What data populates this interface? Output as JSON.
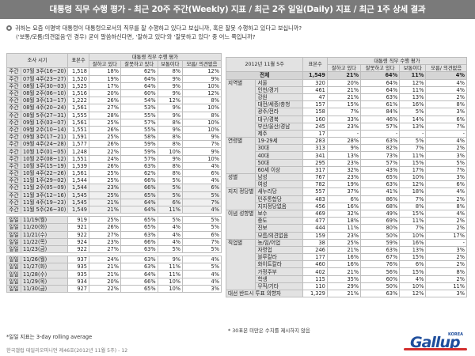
{
  "banner": "대통령 직무 수행 평가 - 최근 20주 주간(Weekly) 지표 / 최근 2주 일일(Daily) 지표 / 최근 1주 상세 결과",
  "question": {
    "line1": "귀하는 요즘 이명박 대통령이 대통령으로서의 직무를 잘 수행하고 있다고 보십니까, 혹은 잘못 수행하고 있다고 보십니까?",
    "line2": "('보통/모름/의견없음'인 경우) 굳이 말씀하신다면, '잘하고 있다'와 '잘못하고 있다' 중 어느 쪽입니까?"
  },
  "left_table": {
    "header_period": "조사 시기",
    "header_base": "표본수",
    "header_group": "대통령 직무 수행 평가",
    "cols": [
      "잘하고 있다",
      "잘못하고 있다",
      "보통이다",
      "모름/ 의견없음"
    ],
    "weekly": [
      [
        "주간",
        "07월 3주(16~20)",
        "1,518",
        "18%",
        "62%",
        "8%",
        "12%"
      ],
      [
        "주간",
        "07월 4주(23~27)",
        "1,520",
        "19%",
        "64%",
        "9%",
        "9%"
      ],
      [
        "주간",
        "08월 1주(30~03)",
        "1,525",
        "17%",
        "64%",
        "9%",
        "10%"
      ],
      [
        "주간",
        "08월 2주(06~10)",
        "1,516",
        "20%",
        "60%",
        "9%",
        "12%"
      ],
      [
        "주간",
        "08월 3주(13~17)",
        "1,222",
        "26%",
        "54%",
        "12%",
        "8%"
      ],
      [
        "주간",
        "08월 4주(20~24)",
        "1,561",
        "27%",
        "53%",
        "9%",
        "10%"
      ],
      [
        "주간",
        "08월 5주(27~31)",
        "1,555",
        "28%",
        "55%",
        "9%",
        "8%"
      ],
      [
        "주간",
        "09월 1주(03~07)",
        "1,561",
        "25%",
        "57%",
        "8%",
        "10%"
      ],
      [
        "주간",
        "09월 2주(10~14)",
        "1,551",
        "26%",
        "55%",
        "9%",
        "10%"
      ],
      [
        "주간",
        "09월 3주(17~21)",
        "1,591",
        "25%",
        "58%",
        "8%",
        "9%"
      ],
      [
        "주간",
        "09월 4주(24~28)",
        "1,577",
        "26%",
        "59%",
        "8%",
        "7%"
      ],
      [
        "주간",
        "10월 1주(01~05)",
        "1,248",
        "22%",
        "59%",
        "10%",
        "9%"
      ],
      [
        "주간",
        "10월 2주(08~12)",
        "1,551",
        "24%",
        "57%",
        "9%",
        "10%"
      ],
      [
        "주간",
        "10월 3주(15~19)",
        "1,539",
        "26%",
        "63%",
        "8%",
        "4%"
      ],
      [
        "주간",
        "10월 4주(22~26)",
        "1,561",
        "25%",
        "62%",
        "8%",
        "6%"
      ],
      [
        "주간",
        "11월 1주(29~02)",
        "1,544",
        "25%",
        "66%",
        "5%",
        "4%"
      ],
      [
        "주간",
        "11월 2주(05~09)",
        "1,544",
        "23%",
        "66%",
        "5%",
        "6%"
      ],
      [
        "주간",
        "11월 3주(12~16)",
        "1,545",
        "25%",
        "65%",
        "5%",
        "5%"
      ],
      [
        "주간",
        "11월 4주(19~23)",
        "1,545",
        "21%",
        "64%",
        "6%",
        "7%"
      ],
      [
        "주간",
        "11월 5주(26~30)",
        "1,549",
        "21%",
        "64%",
        "11%",
        "4%"
      ]
    ],
    "daily_1": [
      [
        "일일",
        "11/19(월)",
        "919",
        "25%",
        "65%",
        "5%",
        "5%"
      ],
      [
        "일일",
        "11/20(화)",
        "921",
        "26%",
        "65%",
        "4%",
        "5%"
      ],
      [
        "일일",
        "11/21(수)",
        "922",
        "27%",
        "63%",
        "4%",
        "6%"
      ],
      [
        "일일",
        "11/22(목)",
        "924",
        "23%",
        "66%",
        "4%",
        "7%"
      ],
      [
        "일일",
        "11/23(금)",
        "922",
        "27%",
        "63%",
        "5%",
        "5%"
      ]
    ],
    "daily_2": [
      [
        "일일",
        "11/26(월)",
        "937",
        "24%",
        "63%",
        "9%",
        "4%"
      ],
      [
        "일일",
        "11/27(화)",
        "935",
        "21%",
        "63%",
        "11%",
        "5%"
      ],
      [
        "일일",
        "11/28(수)",
        "935",
        "21%",
        "64%",
        "11%",
        "4%"
      ],
      [
        "일일",
        "11/29(목)",
        "934",
        "20%",
        "66%",
        "10%",
        "4%"
      ],
      [
        "일일",
        "11/30(금)",
        "927",
        "22%",
        "65%",
        "10%",
        "3%"
      ]
    ]
  },
  "right_table": {
    "header_title": "2012년 11월 5주",
    "header_base": "표본수",
    "header_group": "대통령 직무 수행 평가",
    "cols": [
      "잘하고 있다",
      "잘못하고 있다",
      "보통이다",
      "모름/ 의견없음"
    ],
    "total": [
      "전체",
      "1,549",
      "21%",
      "64%",
      "11%",
      "4%"
    ],
    "groups": [
      {
        "name": "지역별",
        "rows": [
          [
            "서울",
            "320",
            "20%",
            "64%",
            "12%",
            "4%"
          ],
          [
            "인천/경기",
            "461",
            "21%",
            "64%",
            "11%",
            "4%"
          ],
          [
            "강원",
            "47",
            "21%",
            "63%",
            "13%",
            "2%"
          ],
          [
            "대전/세종/충청",
            "157",
            "15%",
            "61%",
            "16%",
            "8%"
          ],
          [
            "광주/전라",
            "158",
            "7%",
            "84%",
            "5%",
            "3%"
          ],
          [
            "대구/경북",
            "160",
            "33%",
            "46%",
            "14%",
            "6%"
          ],
          [
            "부산/울산/경남",
            "245",
            "23%",
            "57%",
            "13%",
            "7%"
          ],
          [
            "제주",
            "17",
            "-",
            "-",
            "-",
            "-"
          ]
        ]
      },
      {
        "name": "연령별",
        "rows": [
          [
            "19-29세",
            "283",
            "28%",
            "63%",
            "5%",
            "4%"
          ],
          [
            "30대",
            "313",
            "9%",
            "82%",
            "7%",
            "2%"
          ],
          [
            "40대",
            "341",
            "13%",
            "73%",
            "11%",
            "3%"
          ],
          [
            "50대",
            "295",
            "23%",
            "57%",
            "15%",
            "5%"
          ],
          [
            "60세 이상",
            "317",
            "32%",
            "43%",
            "17%",
            "7%"
          ]
        ]
      },
      {
        "name": "성별",
        "rows": [
          [
            "남성",
            "767",
            "23%",
            "65%",
            "10%",
            "3%"
          ],
          [
            "여성",
            "782",
            "19%",
            "63%",
            "12%",
            "6%"
          ]
        ]
      },
      {
        "name": "지지 정당별",
        "rows": [
          [
            "새누리당",
            "557",
            "37%",
            "41%",
            "18%",
            "4%"
          ],
          [
            "민주통합당",
            "483",
            "6%",
            "86%",
            "7%",
            "2%"
          ],
          [
            "지지정당없음",
            "456",
            "16%",
            "68%",
            "8%",
            "8%"
          ]
        ]
      },
      {
        "name": "이념 성향별",
        "rows": [
          [
            "보수",
            "469",
            "32%",
            "49%",
            "15%",
            "4%"
          ],
          [
            "중도",
            "477",
            "18%",
            "69%",
            "11%",
            "2%"
          ],
          [
            "진보",
            "444",
            "11%",
            "80%",
            "7%",
            "2%"
          ],
          [
            "모름/의견없음",
            "159",
            "23%",
            "50%",
            "10%",
            "17%"
          ]
        ]
      },
      {
        "name": "직업별",
        "rows": [
          [
            "농/임/어업",
            "38",
            "25%",
            "59%",
            "16%",
            "-"
          ],
          [
            "자영업",
            "246",
            "21%",
            "63%",
            "13%",
            "3%"
          ],
          [
            "블루칼라",
            "177",
            "16%",
            "67%",
            "15%",
            "2%"
          ],
          [
            "화이트칼라",
            "460",
            "16%",
            "76%",
            "6%",
            "2%"
          ],
          [
            "가정주부",
            "402",
            "21%",
            "56%",
            "15%",
            "8%"
          ],
          [
            "학생",
            "115",
            "35%",
            "60%",
            "4%",
            "2%"
          ],
          [
            "무직/기타",
            "110",
            "29%",
            "50%",
            "10%",
            "11%"
          ]
        ]
      },
      {
        "name": "대선 반드시 투표 의향자",
        "rows": [
          [
            "",
            "1,329",
            "21%",
            "63%",
            "12%",
            "3%"
          ]
        ]
      }
    ]
  },
  "note_left": "*일일 지표는 3-day rolling average",
  "note_right": "* 30표본 미만은 수치를 제시하지 않음",
  "footer": "한국갤럽 데일리오피니언 제46호(2012년 11월 5주) - 12",
  "logo": {
    "text": "Gallup",
    "korea": "KOREA",
    "color": "#1f4e9c",
    "accent": "#d32f2f"
  }
}
